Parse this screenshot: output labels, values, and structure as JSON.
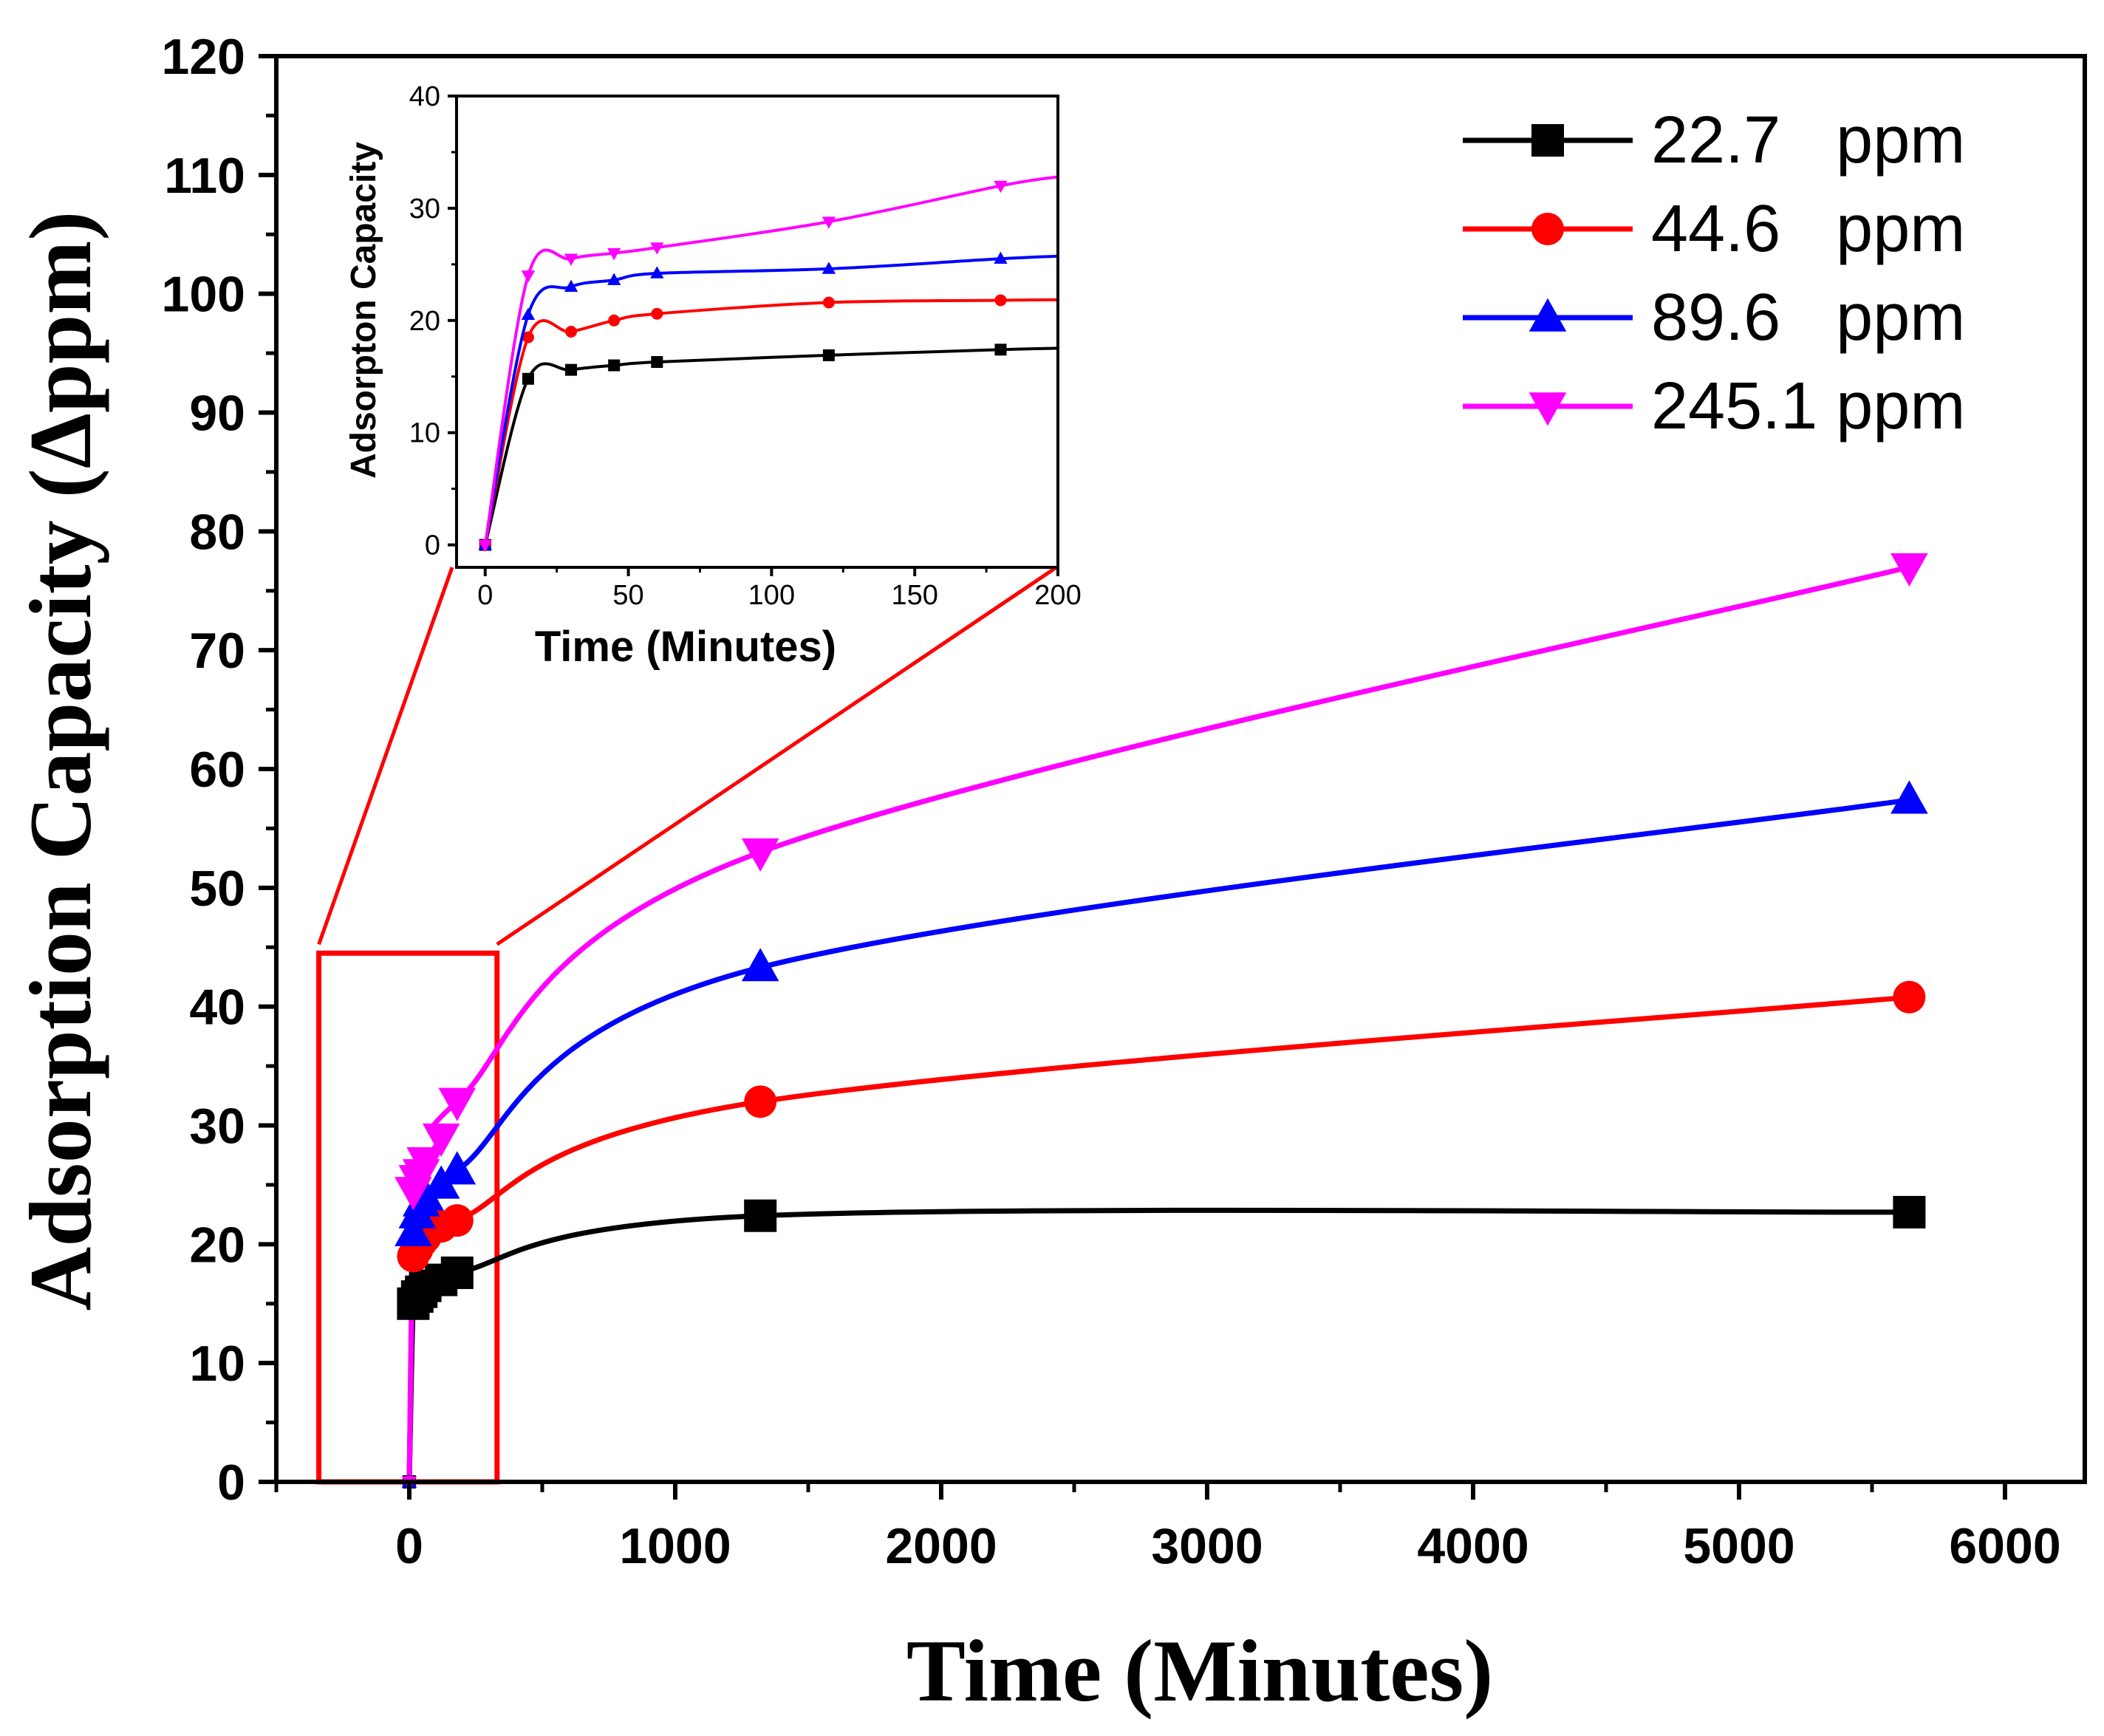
{
  "colors": {
    "axis": "#000000",
    "zoom_box": "#ff0000",
    "series": [
      "#000000",
      "#ff0000",
      "#0000ff",
      "#ff00ff"
    ]
  },
  "chart_data": [
    {
      "id": "main",
      "type": "line",
      "xlabel": "Time (Minutes)",
      "ylabel": "Adsorption Capacity (Δppm)",
      "xlim": [
        -500,
        6300
      ],
      "ylim": [
        0,
        120
      ],
      "xticks": [
        0,
        1000,
        2000,
        3000,
        4000,
        5000,
        6000
      ],
      "yticks": [
        0,
        10,
        20,
        30,
        40,
        50,
        60,
        70,
        80,
        90,
        100,
        110,
        120
      ],
      "zoom_region": {
        "x": [
          -340,
          330
        ],
        "y": [
          0,
          44.5
        ]
      },
      "legend_position": "top-right",
      "series": [
        {
          "name": "22.7   ppm",
          "marker": "square",
          "x": [
            0,
            15,
            30,
            45,
            60,
            120,
            180,
            1320,
            5640
          ],
          "y": [
            0,
            15,
            15.6,
            16,
            16.5,
            17,
            17.6,
            22.4,
            22.7
          ]
        },
        {
          "name": "44.6   ppm",
          "marker": "circle",
          "x": [
            0,
            15,
            30,
            45,
            60,
            120,
            180,
            1320,
            5640
          ],
          "y": [
            0,
            19,
            19.6,
            20.2,
            20.6,
            21.5,
            22,
            32,
            40.8
          ]
        },
        {
          "name": "89.6   ppm",
          "marker": "triangle-up",
          "x": [
            0,
            15,
            30,
            45,
            60,
            120,
            180,
            1320,
            5640
          ],
          "y": [
            0,
            21,
            22.5,
            23.5,
            24,
            25,
            26.2,
            43.3,
            57.4
          ]
        },
        {
          "name": "245.1 ppm",
          "marker": "triangle-down",
          "x": [
            0,
            15,
            30,
            45,
            60,
            120,
            180,
            1320,
            5640
          ],
          "y": [
            0,
            24.5,
            25.5,
            26,
            27,
            29,
            32,
            53,
            77
          ]
        }
      ]
    },
    {
      "id": "inset",
      "type": "line",
      "xlabel": "Time (Minutes)",
      "ylabel": "Adsorpton Capacity",
      "xlim": [
        -10,
        200
      ],
      "ylim": [
        -2,
        40
      ],
      "xticks": [
        0,
        50,
        100,
        150,
        200
      ],
      "yticks": [
        0,
        10,
        20,
        30,
        40
      ],
      "series": [
        {
          "name": "22.7 ppm",
          "marker": "square",
          "x": [
            0,
            15,
            30,
            45,
            60,
            120,
            180
          ],
          "y": [
            0,
            14.8,
            15.6,
            16,
            16.3,
            16.9,
            17.4
          ]
        },
        {
          "name": "44.6 ppm",
          "marker": "circle",
          "x": [
            0,
            15,
            30,
            45,
            60,
            120,
            180
          ],
          "y": [
            0,
            18.5,
            19,
            20,
            20.6,
            21.6,
            21.8
          ]
        },
        {
          "name": "89.6 ppm",
          "marker": "triangle-up",
          "x": [
            0,
            15,
            30,
            45,
            60,
            120,
            180
          ],
          "y": [
            0,
            20.5,
            23,
            23.6,
            24.2,
            24.6,
            25.5
          ]
        },
        {
          "name": "245.1 ppm",
          "marker": "triangle-down",
          "x": [
            0,
            15,
            30,
            45,
            60,
            120,
            180
          ],
          "y": [
            0,
            24,
            25.5,
            26,
            26.5,
            28.8,
            32
          ]
        }
      ]
    }
  ]
}
